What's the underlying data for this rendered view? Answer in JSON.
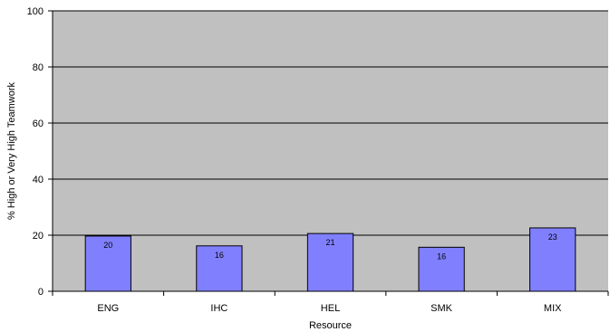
{
  "chart_data": {
    "type": "bar",
    "title": "",
    "xlabel": "Resource",
    "ylabel": "% High or Very High Teamwork",
    "categories": [
      "ENG",
      "IHC",
      "HEL",
      "SMK",
      "MIX"
    ],
    "values": [
      19.7,
      16.2,
      20.6,
      15.7,
      22.6
    ],
    "data_labels": [
      "20",
      "16",
      "21",
      "16",
      "23"
    ],
    "ylim": [
      0,
      100
    ],
    "yticks": [
      0,
      20,
      40,
      60,
      80,
      100
    ],
    "ytick_labels": [
      "0",
      "20",
      "40",
      "60",
      "80",
      "100"
    ],
    "grid": true,
    "legend": "none",
    "colors": {
      "plot_background": "#c0c0c0",
      "bar_fill": "#8080ff",
      "bar_stroke": "#000000",
      "gridline": "#000000"
    }
  }
}
